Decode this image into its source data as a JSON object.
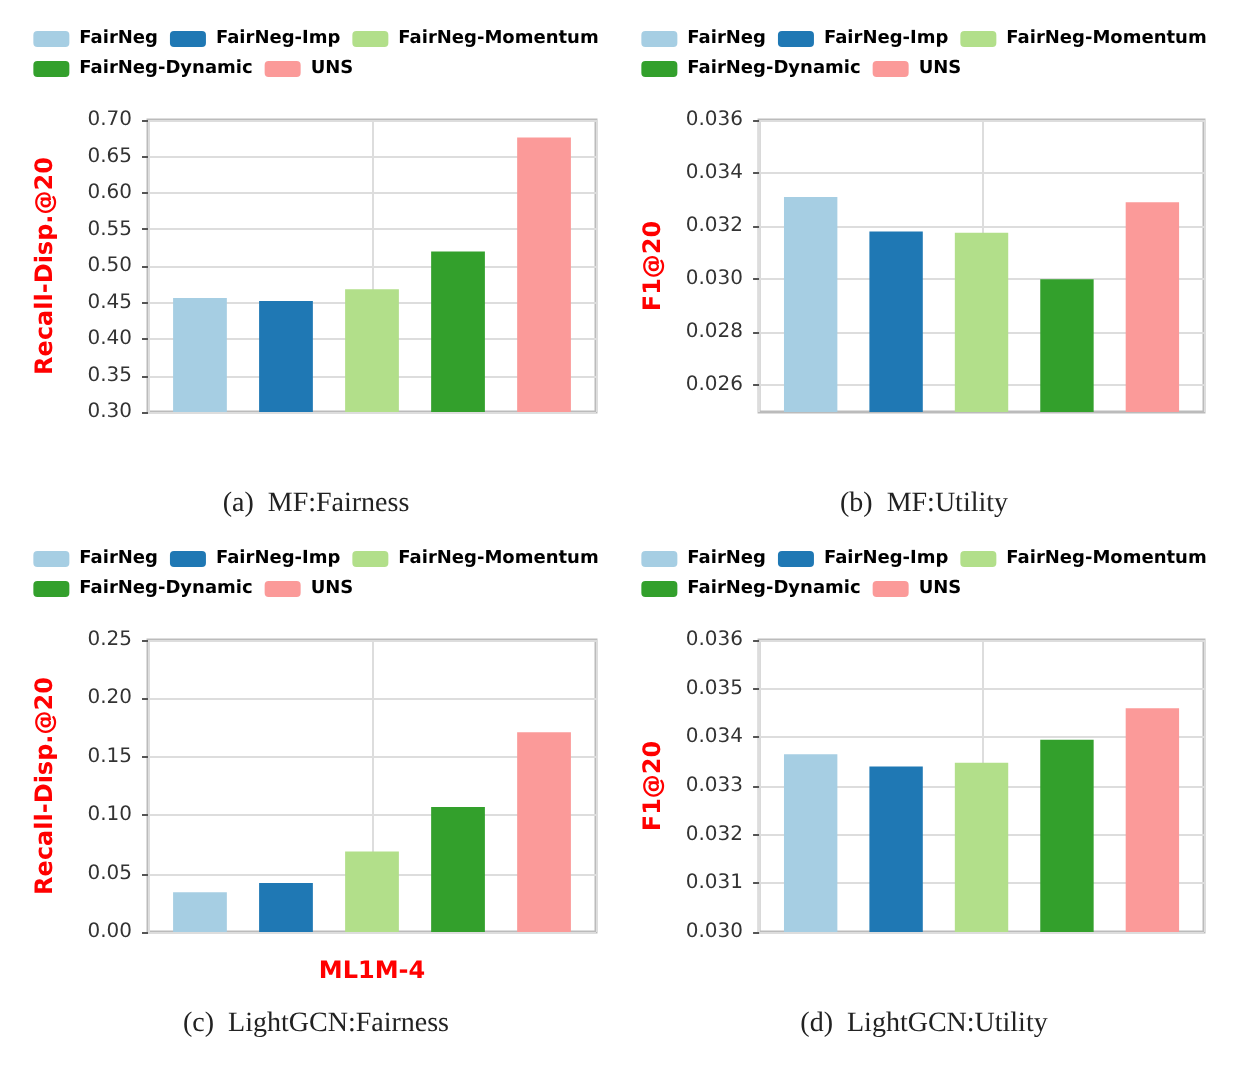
{
  "chart_data": [
    {
      "type": "bar",
      "title": "(a)  MF:Fairness",
      "ylabel": "Recall-Disp.@20",
      "categories": [
        null
      ],
      "legend": "top",
      "grid": true,
      "ylim": [
        0.3,
        0.7
      ],
      "yticks": [
        {
          "value": 0.3,
          "label": "0.30"
        },
        {
          "value": 0.35,
          "label": "0.35"
        },
        {
          "value": 0.4,
          "label": "0.40"
        },
        {
          "value": 0.45,
          "label": "0.45"
        },
        {
          "value": 0.5,
          "label": "0.50"
        },
        {
          "value": 0.55,
          "label": "0.55"
        },
        {
          "value": 0.6,
          "label": "0.60"
        },
        {
          "value": 0.65,
          "label": "0.65"
        },
        {
          "value": 0.7,
          "label": "0.70"
        }
      ],
      "series": [
        {
          "name": "FairNeg",
          "color": "#a6cee3",
          "values": [
            0.456
          ]
        },
        {
          "name": "FairNeg-Imp",
          "color": "#1f78b4",
          "values": [
            0.452
          ]
        },
        {
          "name": "FairNeg-Momentum",
          "color": "#b2df8a",
          "values": [
            0.468
          ]
        },
        {
          "name": "FairNeg-Dynamic",
          "color": "#33a02c",
          "values": [
            0.52
          ]
        },
        {
          "name": "UNS",
          "color": "#fb9a99",
          "values": [
            0.676
          ]
        }
      ]
    },
    {
      "type": "bar",
      "title": "(b)  MF:Utility",
      "ylabel": "F1@20",
      "categories": [
        null
      ],
      "legend": "top",
      "grid": true,
      "ylim": [
        0.025,
        0.036
      ],
      "yticks": [
        0.026,
        0.028,
        {
          "value": 0.03,
          "label": "0.030"
        },
        0.032,
        0.034,
        0.036
      ],
      "series": [
        {
          "name": "FairNeg",
          "color": "#a6cee3",
          "values": [
            0.0331
          ]
        },
        {
          "name": "FairNeg-Imp",
          "color": "#1f78b4",
          "values": [
            0.0318
          ]
        },
        {
          "name": "FairNeg-Momentum",
          "color": "#b2df8a",
          "values": [
            0.03175
          ]
        },
        {
          "name": "FairNeg-Dynamic",
          "color": "#33a02c",
          "values": [
            0.03
          ]
        },
        {
          "name": "UNS",
          "color": "#fb9a99",
          "values": [
            0.0329
          ]
        }
      ]
    },
    {
      "type": "bar",
      "title": "(c)  LightGCN:Fairness",
      "ylabel": "Recall-Disp.@20",
      "xlabel": "ML1M-4",
      "categories": [
        null
      ],
      "legend": "top",
      "grid": true,
      "ylim": [
        0,
        0.25
      ],
      "yticks": [
        {
          "value": 0,
          "label": "0.00"
        },
        {
          "value": 0.05,
          "label": "0.05"
        },
        {
          "value": 0.1,
          "label": "0.10"
        },
        {
          "value": 0.15,
          "label": "0.15"
        },
        {
          "value": 0.2,
          "label": "0.20"
        },
        {
          "value": 0.25,
          "label": "0.25"
        }
      ],
      "series": [
        {
          "name": "FairNeg",
          "color": "#a6cee3",
          "values": [
            0.034
          ]
        },
        {
          "name": "FairNeg-Imp",
          "color": "#1f78b4",
          "values": [
            0.042
          ]
        },
        {
          "name": "FairNeg-Momentum",
          "color": "#b2df8a",
          "values": [
            0.069
          ]
        },
        {
          "name": "FairNeg-Dynamic",
          "color": "#33a02c",
          "values": [
            0.107
          ]
        },
        {
          "name": "UNS",
          "color": "#fb9a99",
          "values": [
            0.171
          ]
        }
      ]
    },
    {
      "type": "bar",
      "title": "(d)  LightGCN:Utility",
      "ylabel": "F1@20",
      "categories": [
        null
      ],
      "legend": "top",
      "grid": true,
      "ylim": [
        0.03,
        0.036
      ],
      "yticks": [
        {
          "value": 0.03,
          "label": "0.030"
        },
        0.031,
        0.032,
        0.033,
        0.034,
        0.035,
        0.036
      ],
      "series": [
        {
          "name": "FairNeg",
          "color": "#a6cee3",
          "values": [
            0.03365
          ]
        },
        {
          "name": "FairNeg-Imp",
          "color": "#1f78b4",
          "values": [
            0.0334
          ]
        },
        {
          "name": "FairNeg-Momentum",
          "color": "#b2df8a",
          "values": [
            0.03348
          ]
        },
        {
          "name": "FairNeg-Dynamic",
          "color": "#33a02c",
          "values": [
            0.03395
          ]
        },
        {
          "name": "UNS",
          "color": "#fb9a99",
          "values": [
            0.0346
          ]
        }
      ]
    }
  ]
}
